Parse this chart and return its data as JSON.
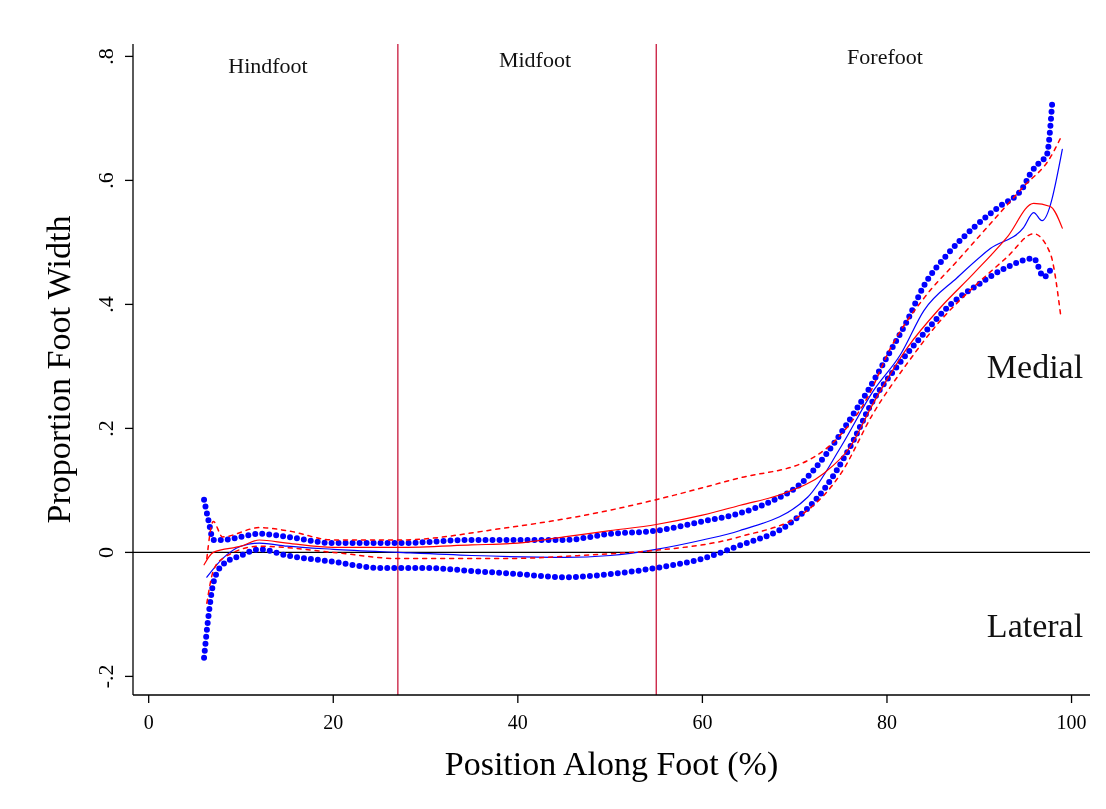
{
  "chart_data": {
    "type": "line",
    "xlabel": "Position Along Foot (%)",
    "ylabel": "Proportion Foot Width",
    "xlim": [
      -1.7,
      102
    ],
    "ylim": [
      -0.23,
      0.82
    ],
    "xticks": [
      0,
      20,
      40,
      60,
      80,
      100
    ],
    "yticks": [
      {
        "value": -0.2,
        "label": "-.2"
      },
      {
        "value": 0,
        "label": "0"
      },
      {
        "value": 0.2,
        "label": ".2"
      },
      {
        "value": 0.4,
        "label": ".4"
      },
      {
        "value": 0.6,
        "label": ".6"
      },
      {
        "value": 0.8,
        "label": ".8"
      }
    ],
    "grid": false,
    "ref_lines": [
      {
        "axis": "x",
        "value": 27,
        "color": "#c8183c"
      },
      {
        "axis": "x",
        "value": 55,
        "color": "#c8183c"
      },
      {
        "axis": "y",
        "value": 0,
        "color": "#000000"
      }
    ],
    "annotations": [
      "Hindfoot",
      "Midfoot",
      "Forefoot",
      "Medial",
      "Lateral"
    ],
    "series": [
      {
        "color": "#0000ff",
        "line_style": "dotted",
        "x": [
          6,
          6.5,
          7,
          8,
          10,
          12,
          15,
          20,
          27,
          35,
          40,
          45,
          50,
          55,
          60,
          64,
          67.7,
          70.6,
          73.5,
          75.7,
          77.9,
          80,
          82.2,
          84,
          86.5,
          89.4,
          92,
          94.8,
          95.5,
          96.6,
          97.3,
          97.9
        ],
        "values": [
          0.085,
          0.05,
          0.02,
          0.02,
          0.025,
          0.03,
          0.025,
          0.015,
          0.015,
          0.02,
          0.02,
          0.02,
          0.03,
          0.035,
          0.05,
          0.063,
          0.084,
          0.11,
          0.16,
          0.208,
          0.26,
          0.315,
          0.374,
          0.43,
          0.48,
          0.524,
          0.556,
          0.59,
          0.61,
          0.63,
          0.64,
          0.724
        ]
      },
      {
        "color": "#0000ff",
        "line_style": "dotted",
        "x": [
          6,
          6.5,
          7,
          8,
          10,
          12,
          15,
          20,
          25,
          30,
          35,
          40,
          45,
          50,
          55,
          60,
          64,
          69.5,
          73.1,
          76,
          78.5,
          81.1,
          84,
          86.9,
          90.1,
          93,
          95.9,
          97,
          97.7
        ],
        "values": [
          -0.17,
          -0.1,
          -0.05,
          -0.02,
          -0.005,
          0.005,
          -0.005,
          -0.015,
          -0.025,
          -0.025,
          -0.03,
          -0.035,
          -0.04,
          -0.035,
          -0.025,
          -0.01,
          0.011,
          0.047,
          0.1,
          0.17,
          0.245,
          0.3,
          0.353,
          0.4,
          0.434,
          0.46,
          0.474,
          0.444,
          0.455
        ]
      },
      {
        "color": "#0000ff",
        "line_style": "solid",
        "x": [
          6.3,
          8,
          10,
          12,
          15,
          20,
          27,
          35,
          45,
          50,
          55,
          60,
          64,
          71.4,
          75,
          78.5,
          81.5,
          84,
          87.6,
          91.2,
          94.8,
          95.9,
          96.8,
          99
        ],
        "values": [
          -0.04,
          -0.01,
          0.01,
          0.015,
          0.01,
          0.005,
          0,
          -0.005,
          -0.008,
          -0.005,
          0.005,
          0.02,
          0.035,
          0.089,
          0.17,
          0.26,
          0.32,
          0.39,
          0.443,
          0.49,
          0.524,
          0.548,
          0.535,
          0.65
        ]
      },
      {
        "color": "#ff0000",
        "line_style": "solid",
        "x": [
          6,
          7,
          10,
          12,
          15,
          20,
          27,
          35,
          40,
          45,
          50,
          55,
          60,
          64.1,
          68.8,
          73.1,
          76,
          78.5,
          82.2,
          85.8,
          89.4,
          93,
          95.9,
          97.7,
          99
        ],
        "values": [
          -0.02,
          0,
          0.01,
          0.02,
          0.015,
          0.008,
          0.008,
          0.012,
          0.015,
          0.025,
          0.035,
          0.045,
          0.06,
          0.076,
          0.095,
          0.127,
          0.17,
          0.24,
          0.33,
          0.395,
          0.45,
          0.508,
          0.563,
          0.558,
          0.523
        ]
      },
      {
        "color": "#ff0000",
        "line_style": "dashed",
        "x": [
          6.3,
          7,
          8,
          12,
          15,
          20,
          27.2,
          38,
          49,
          54.7,
          64,
          71.4,
          75,
          77.9,
          80.4,
          84,
          87.6,
          91.2,
          94.8,
          97.7,
          98.8
        ],
        "values": [
          -0.01,
          0.05,
          0.025,
          0.04,
          0.035,
          0.02,
          0.02,
          0.038,
          0.065,
          0.084,
          0.12,
          0.148,
          0.19,
          0.25,
          0.33,
          0.41,
          0.47,
          0.53,
          0.59,
          0.637,
          0.668
        ]
      },
      {
        "color": "#ff0000",
        "line_style": "dashed",
        "x": [
          6.3,
          7,
          8,
          12,
          20,
          27.2,
          38,
          49,
          54.7,
          64,
          71.4,
          75,
          78.5,
          82.2,
          85.8,
          89.4,
          93,
          95.9,
          97.7,
          98.8
        ],
        "values": [
          -0.082,
          -0.03,
          -0.01,
          0.01,
          0,
          -0.01,
          -0.01,
          -0.003,
          0.003,
          0.025,
          0.068,
          0.127,
          0.224,
          0.305,
          0.374,
          0.428,
          0.476,
          0.514,
          0.482,
          0.385
        ]
      }
    ]
  }
}
